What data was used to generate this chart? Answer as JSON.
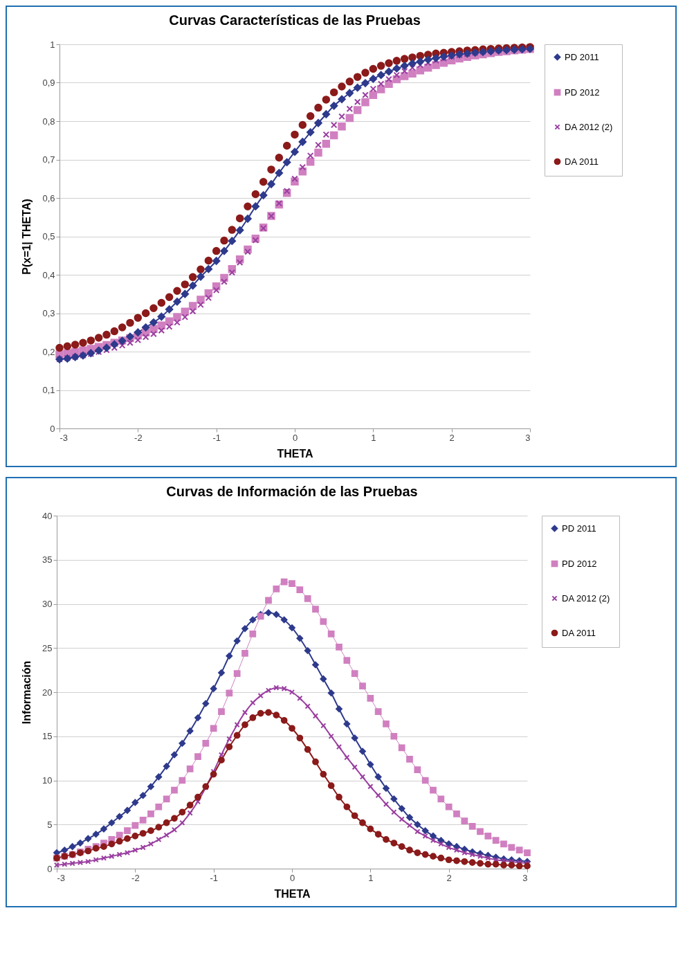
{
  "chart_data": [
    {
      "type": "line",
      "title": "Curvas Características de las Pruebas",
      "xlabel": "THETA",
      "ylabel": "P(x=1| THETA)",
      "xlim": [
        -3,
        3
      ],
      "xticks": [
        -3,
        -2,
        -1,
        0,
        1,
        2,
        3
      ],
      "ylim": [
        0,
        1
      ],
      "yticks": [
        0,
        {
          "value": 0.1,
          "label": "0,1"
        },
        {
          "value": 0.2,
          "label": "0,2"
        },
        {
          "value": 0.3,
          "label": "0,3"
        },
        {
          "value": 0.4,
          "label": "0,4"
        },
        {
          "value": 0.5,
          "label": "0,5"
        },
        {
          "value": 0.6,
          "label": "0,6"
        },
        {
          "value": 0.7,
          "label": "0,7"
        },
        {
          "value": 0.8,
          "label": "0,8"
        },
        {
          "value": 0.9,
          "label": "0,9"
        },
        1
      ],
      "grid": "y",
      "legend": "right",
      "x": [
        -3,
        -2.9,
        -2.8,
        -2.7,
        -2.6,
        -2.5,
        -2.4,
        -2.3,
        -2.2,
        -2.1,
        -2,
        -1.9,
        -1.8,
        -1.7,
        -1.6,
        -1.5,
        -1.4,
        -1.3,
        -1.2,
        -1.1,
        -1,
        -0.9,
        -0.8,
        -0.7,
        -0.6,
        -0.5,
        -0.4,
        -0.3,
        -0.2,
        -0.1,
        0,
        0.1,
        0.2,
        0.3,
        0.4,
        0.5,
        0.6,
        0.7,
        0.8,
        0.9,
        1,
        1.1,
        1.2,
        1.3,
        1.4,
        1.5,
        1.6,
        1.7,
        1.8,
        1.9,
        2,
        2.1,
        2.2,
        2.3,
        2.4,
        2.5,
        2.6,
        2.7,
        2.8,
        2.9,
        3
      ],
      "series": [
        {
          "name": "PD 2011",
          "marker": "diamond",
          "color": "#2e3a8c",
          "values": [
            0.18,
            0.182,
            0.186,
            0.19,
            0.196,
            0.203,
            0.21,
            0.219,
            0.228,
            0.239,
            0.25,
            0.263,
            0.276,
            0.291,
            0.31,
            0.33,
            0.35,
            0.372,
            0.395,
            0.415,
            0.436,
            0.462,
            0.488,
            0.516,
            0.546,
            0.578,
            0.607,
            0.636,
            0.665,
            0.693,
            0.72,
            0.746,
            0.771,
            0.795,
            0.818,
            0.84,
            0.857,
            0.873,
            0.887,
            0.899,
            0.91,
            0.92,
            0.929,
            0.937,
            0.944,
            0.95,
            0.955,
            0.96,
            0.964,
            0.968,
            0.971,
            0.974,
            0.976,
            0.978,
            0.98,
            0.982,
            0.984,
            0.985,
            0.986,
            0.987,
            0.988
          ]
        },
        {
          "name": "PD 2012",
          "type": "scatter",
          "marker": "square",
          "color": "#d080c0",
          "values": [
            0.193,
            0.196,
            0.199,
            0.203,
            0.207,
            0.212,
            0.217,
            0.223,
            0.229,
            0.235,
            0.242,
            0.25,
            0.259,
            0.268,
            0.279,
            0.29,
            0.304,
            0.319,
            0.335,
            0.352,
            0.37,
            0.392,
            0.415,
            0.44,
            0.466,
            0.494,
            0.523,
            0.553,
            0.583,
            0.613,
            0.643,
            0.669,
            0.694,
            0.718,
            0.741,
            0.763,
            0.786,
            0.808,
            0.829,
            0.849,
            0.868,
            0.883,
            0.897,
            0.909,
            0.917,
            0.924,
            0.932,
            0.939,
            0.946,
            0.952,
            0.958,
            0.963,
            0.967,
            0.971,
            0.974,
            0.977,
            0.98,
            0.982,
            0.984,
            0.986,
            0.988
          ]
        },
        {
          "name": "DA 2012 (2)",
          "type": "scatter",
          "marker": "cross",
          "color": "#9a3fa0",
          "values": [
            0.18,
            0.183,
            0.186,
            0.19,
            0.194,
            0.199,
            0.204,
            0.21,
            0.216,
            0.223,
            0.23,
            0.238,
            0.246,
            0.255,
            0.265,
            0.276,
            0.29,
            0.305,
            0.322,
            0.34,
            0.36,
            0.382,
            0.406,
            0.432,
            0.46,
            0.49,
            0.521,
            0.553,
            0.586,
            0.618,
            0.65,
            0.68,
            0.71,
            0.738,
            0.765,
            0.79,
            0.812,
            0.832,
            0.85,
            0.868,
            0.884,
            0.897,
            0.909,
            0.92,
            0.93,
            0.939,
            0.946,
            0.952,
            0.958,
            0.963,
            0.968,
            0.972,
            0.975,
            0.978,
            0.981,
            0.983,
            0.985,
            0.987,
            0.988,
            0.989,
            0.99
          ]
        },
        {
          "name": "DA 2011",
          "type": "scatter",
          "marker": "circle",
          "color": "#8b1a1a",
          "values": [
            0.21,
            0.214,
            0.218,
            0.223,
            0.229,
            0.236,
            0.244,
            0.253,
            0.263,
            0.275,
            0.288,
            0.3,
            0.313,
            0.327,
            0.342,
            0.358,
            0.375,
            0.394,
            0.414,
            0.437,
            0.462,
            0.489,
            0.517,
            0.547,
            0.578,
            0.61,
            0.642,
            0.674,
            0.705,
            0.736,
            0.765,
            0.79,
            0.813,
            0.835,
            0.856,
            0.875,
            0.89,
            0.903,
            0.915,
            0.926,
            0.936,
            0.944,
            0.951,
            0.957,
            0.962,
            0.966,
            0.97,
            0.973,
            0.976,
            0.978,
            0.98,
            0.982,
            0.984,
            0.985,
            0.987,
            0.988,
            0.989,
            0.99,
            0.991,
            0.992,
            0.993
          ]
        }
      ]
    },
    {
      "type": "line",
      "title": "Curvas de Información de las Pruebas",
      "xlabel": "THETA",
      "ylabel": "Información",
      "xlim": [
        -3,
        3
      ],
      "xticks": [
        -3,
        -2,
        -1,
        0,
        1,
        2,
        3
      ],
      "ylim": [
        0,
        40
      ],
      "yticks": [
        0,
        5,
        10,
        15,
        20,
        25,
        30,
        35,
        40
      ],
      "grid": "y",
      "legend": "right",
      "x": [
        -3,
        -2.9,
        -2.8,
        -2.7,
        -2.6,
        -2.5,
        -2.4,
        -2.3,
        -2.2,
        -2.1,
        -2,
        -1.9,
        -1.8,
        -1.7,
        -1.6,
        -1.5,
        -1.4,
        -1.3,
        -1.2,
        -1.1,
        -1,
        -0.9,
        -0.8,
        -0.7,
        -0.6,
        -0.5,
        -0.4,
        -0.3,
        -0.2,
        -0.1,
        0,
        0.1,
        0.2,
        0.3,
        0.4,
        0.5,
        0.6,
        0.7,
        0.8,
        0.9,
        1,
        1.1,
        1.2,
        1.3,
        1.4,
        1.5,
        1.6,
        1.7,
        1.8,
        1.9,
        2,
        2.1,
        2.2,
        2.3,
        2.4,
        2.5,
        2.6,
        2.7,
        2.8,
        2.9,
        3
      ],
      "series": [
        {
          "name": "PD 2011",
          "marker": "diamond",
          "color": "#2e3a8c",
          "values": [
            1.8,
            2.1,
            2.5,
            2.9,
            3.4,
            3.9,
            4.5,
            5.2,
            5.9,
            6.6,
            7.5,
            8.3,
            9.3,
            10.4,
            11.6,
            12.9,
            14.2,
            15.6,
            17.1,
            18.7,
            20.4,
            22.2,
            24.1,
            25.8,
            27.2,
            28.2,
            28.8,
            29,
            28.8,
            28.2,
            27.3,
            26.1,
            24.7,
            23.1,
            21.5,
            19.9,
            18.1,
            16.4,
            14.8,
            13.3,
            11.8,
            10.4,
            9.1,
            7.9,
            6.8,
            5.8,
            5,
            4.3,
            3.7,
            3.2,
            2.8,
            2.5,
            2.2,
            1.9,
            1.7,
            1.5,
            1.3,
            1.1,
            1,
            0.9,
            0.8
          ]
        },
        {
          "name": "PD 2012",
          "marker": "square",
          "color": "#d080c0",
          "values": [
            1.2,
            1.4,
            1.6,
            1.9,
            2.2,
            2.5,
            2.9,
            3.3,
            3.8,
            4.3,
            4.9,
            5.5,
            6.2,
            7,
            7.9,
            8.9,
            10,
            11.3,
            12.7,
            14.2,
            15.9,
            17.8,
            19.9,
            22.1,
            24.4,
            26.6,
            28.6,
            30.4,
            31.7,
            32.5,
            32.3,
            31.6,
            30.6,
            29.4,
            28,
            26.6,
            25.1,
            23.6,
            22.1,
            20.7,
            19.3,
            17.8,
            16.4,
            15,
            13.7,
            12.4,
            11.2,
            10,
            8.9,
            7.9,
            7,
            6.2,
            5.4,
            4.8,
            4.2,
            3.7,
            3.2,
            2.8,
            2.4,
            2.1,
            1.8
          ]
        },
        {
          "name": "DA 2012 (2)",
          "marker": "cross",
          "color": "#9a3fa0",
          "values": [
            0.4,
            0.5,
            0.6,
            0.7,
            0.8,
            1,
            1.2,
            1.4,
            1.6,
            1.8,
            2.1,
            2.4,
            2.8,
            3.3,
            3.8,
            4.4,
            5.2,
            6.3,
            7.6,
            9.2,
            11,
            12.9,
            14.7,
            16.3,
            17.7,
            18.8,
            19.6,
            20.2,
            20.5,
            20.4,
            20,
            19.3,
            18.4,
            17.3,
            16.2,
            15,
            13.8,
            12.6,
            11.5,
            10.4,
            9.3,
            8.3,
            7.3,
            6.4,
            5.6,
            4.9,
            4.2,
            3.7,
            3.2,
            2.8,
            2.4,
            2.1,
            1.8,
            1.6,
            1.4,
            1.2,
            1,
            0.9,
            0.8,
            0.7,
            0.6
          ]
        },
        {
          "name": "DA 2011",
          "marker": "circle",
          "color": "#8b1a1a",
          "values": [
            1.2,
            1.4,
            1.6,
            1.8,
            2,
            2.3,
            2.5,
            2.8,
            3.1,
            3.4,
            3.7,
            4,
            4.3,
            4.7,
            5.2,
            5.7,
            6.4,
            7.2,
            8.1,
            9.3,
            10.7,
            12.3,
            13.8,
            15.1,
            16.3,
            17.1,
            17.6,
            17.7,
            17.4,
            16.8,
            15.9,
            14.8,
            13.5,
            12.1,
            10.7,
            9.4,
            8.1,
            7,
            6,
            5.2,
            4.5,
            3.9,
            3.3,
            2.9,
            2.5,
            2.1,
            1.8,
            1.6,
            1.4,
            1.2,
            1,
            0.9,
            0.8,
            0.7,
            0.6,
            0.5,
            0.5,
            0.4,
            0.4,
            0.3,
            0.3
          ]
        }
      ]
    }
  ]
}
